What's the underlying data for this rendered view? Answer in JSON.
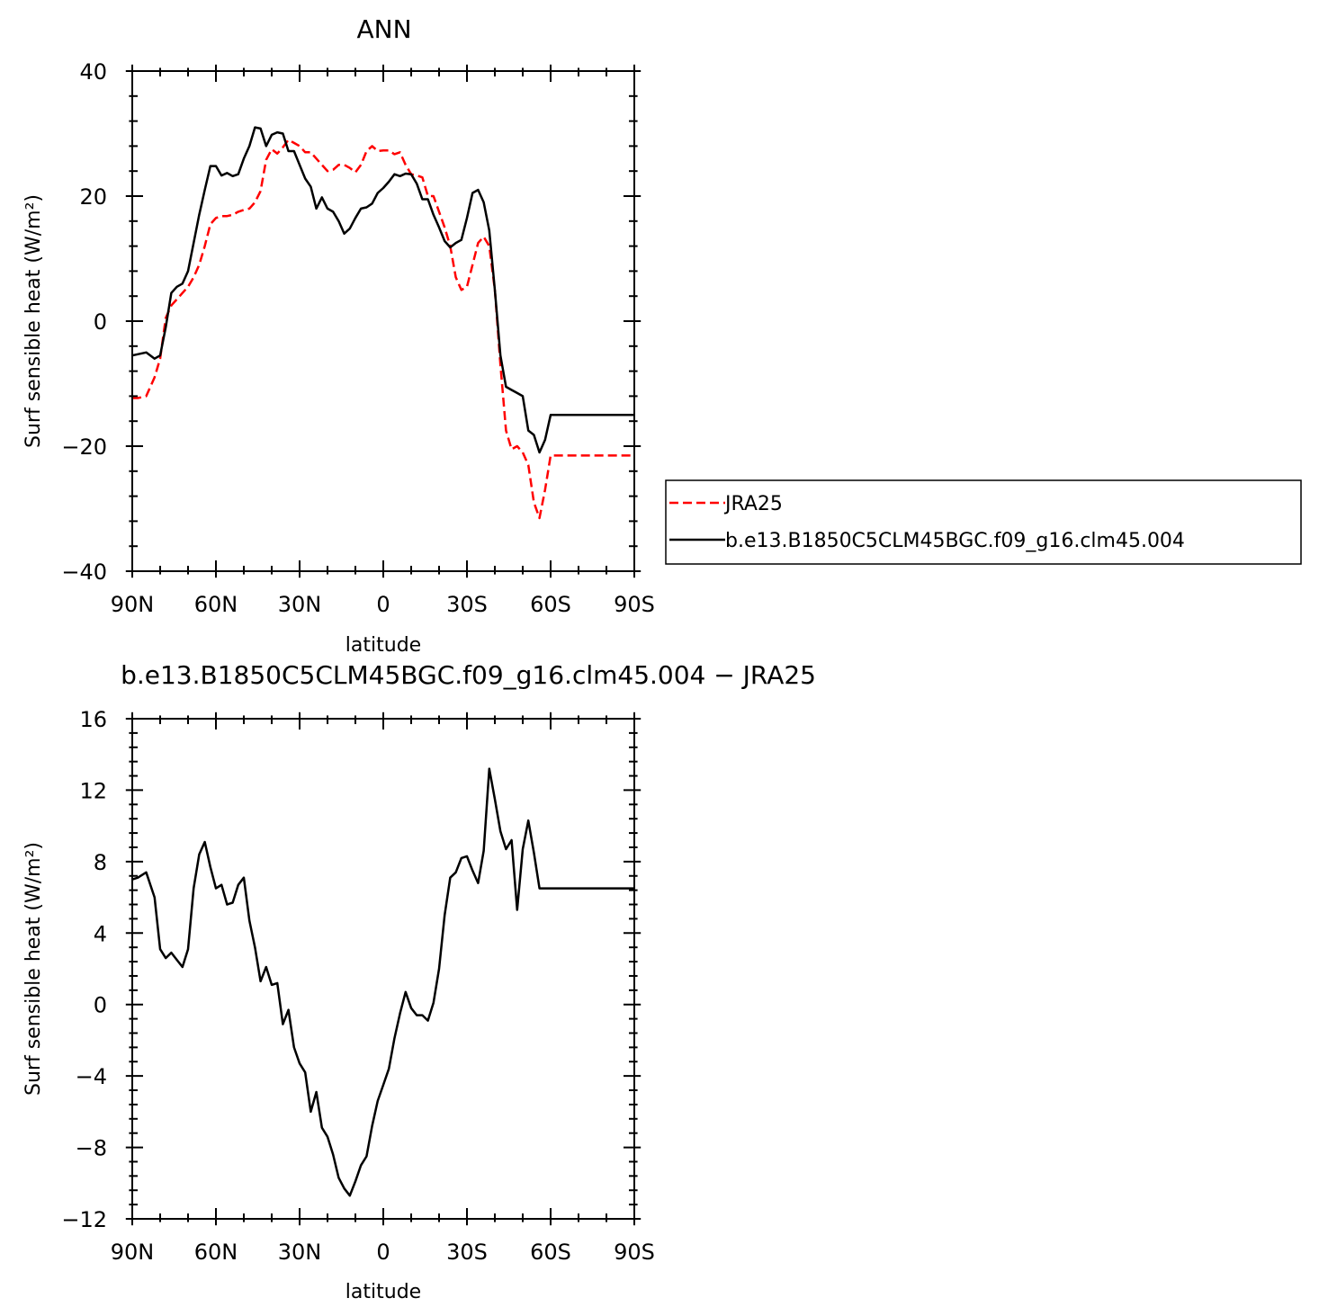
{
  "chart_data": [
    {
      "type": "line",
      "title": "ANN",
      "xlabel": "latitude",
      "ylabel": "Surf sensible heat (W/m²)",
      "xlim": [
        90,
        -90
      ],
      "ylim": [
        -40,
        40
      ],
      "x_ticks": [
        90,
        60,
        30,
        0,
        -30,
        -60,
        -90
      ],
      "x_tick_labels": [
        "90N",
        "60N",
        "30N",
        "0",
        "30S",
        "60S",
        "90S"
      ],
      "y_ticks": [
        -40,
        -20,
        0,
        20,
        40
      ],
      "y_tick_labels": [
        "−40",
        "−20",
        "0",
        "20",
        "40"
      ],
      "grid": false,
      "legend": "right",
      "series": [
        {
          "name": "JRA25",
          "color": "#ff0000",
          "style": "dashed",
          "x": [
            90,
            88,
            85,
            82,
            80,
            78,
            76,
            74,
            72,
            70,
            68,
            66,
            64,
            62,
            60,
            58,
            56,
            54,
            52,
            50,
            48,
            46,
            44,
            42,
            40,
            38,
            36,
            34,
            32,
            30,
            28,
            26,
            24,
            22,
            20,
            18,
            16,
            14,
            12,
            10,
            8,
            6,
            4,
            2,
            0,
            -2,
            -4,
            -6,
            -8,
            -10,
            -12,
            -14,
            -16,
            -18,
            -20,
            -22,
            -24,
            -26,
            -28,
            -30,
            -32,
            -34,
            -36,
            -38,
            -40,
            -42,
            -44,
            -46,
            -48,
            -50,
            -52,
            -54,
            -56,
            -58,
            -60,
            -62,
            -64,
            -66,
            -68,
            -70,
            -72,
            -74,
            -76,
            -78,
            -80,
            -82,
            -84,
            -86,
            -88,
            -90
          ],
          "values": [
            -12.3,
            -12.3,
            -12,
            -9,
            -6,
            0.5,
            2.5,
            3.5,
            4.5,
            5.5,
            7,
            9,
            12,
            15.5,
            16.5,
            16.8,
            16.8,
            17,
            17.5,
            17.8,
            18,
            19,
            20.8,
            25.8,
            27.5,
            26.8,
            27.8,
            29,
            28.5,
            28,
            27,
            27,
            26,
            25,
            24,
            24.2,
            25,
            25,
            24.5,
            23.8,
            25,
            27.2,
            28,
            27.2,
            27.3,
            27.3,
            26.7,
            27,
            25,
            23.5,
            23.3,
            23,
            20,
            20,
            17.5,
            15,
            12,
            7,
            5,
            5.5,
            9,
            12.5,
            13.5,
            12,
            5,
            -7,
            -17.5,
            -20.5,
            -20,
            -21,
            -23,
            -29,
            -31.5,
            -27,
            -21.5,
            -21.5,
            -21.5,
            -21.5,
            -21.5,
            -21.5,
            -21.5,
            -21.5,
            -21.5,
            -21.5,
            -21.5,
            -21.5,
            -21.5,
            -21.5,
            -21.5,
            -21.5
          ]
        },
        {
          "name": "b.e13.B1850C5CLM45BGC.f09_g16.clm45.004",
          "color": "#000000",
          "style": "solid",
          "x": [
            90,
            88,
            85,
            82,
            80,
            78,
            76,
            74,
            72,
            70,
            68,
            66,
            64,
            62,
            60,
            58,
            56,
            54,
            52,
            50,
            48,
            46,
            44,
            42,
            40,
            38,
            36,
            34,
            32,
            30,
            28,
            26,
            24,
            22,
            20,
            18,
            16,
            14,
            12,
            10,
            8,
            6,
            4,
            2,
            0,
            -2,
            -4,
            -6,
            -8,
            -10,
            -12,
            -14,
            -16,
            -18,
            -20,
            -22,
            -24,
            -26,
            -28,
            -30,
            -32,
            -34,
            -36,
            -38,
            -40,
            -42,
            -44,
            -46,
            -48,
            -50,
            -52,
            -54,
            -56,
            -58,
            -60,
            -62,
            -64,
            -66,
            -68,
            -70,
            -72,
            -74,
            -76,
            -78,
            -80,
            -82,
            -84,
            -86,
            -88,
            -90
          ],
          "values": [
            -5.5,
            -5.3,
            -5,
            -6,
            -5.5,
            -1,
            4.5,
            5.5,
            6,
            8,
            12.5,
            17,
            21,
            24.8,
            24.8,
            23.3,
            23.7,
            23.2,
            23.5,
            26,
            28,
            31,
            30.8,
            28,
            29.8,
            30.2,
            30,
            27.2,
            27.2,
            25,
            22.8,
            21.5,
            18,
            19.8,
            18,
            17.5,
            16,
            14,
            14.8,
            16.5,
            18,
            18.2,
            18.8,
            20.5,
            21.3,
            22.3,
            23.5,
            23.2,
            23.6,
            23.5,
            22,
            19.5,
            19.5,
            17,
            15,
            12.8,
            11.8,
            12.5,
            13,
            16.5,
            20.5,
            21,
            19,
            14.5,
            5,
            -5.5,
            -10.5,
            -11,
            -11.5,
            -12,
            -17.5,
            -18.2,
            -21,
            -19,
            -15,
            -15,
            -15,
            -15,
            -15,
            -15,
            -15,
            -15,
            -15,
            -15,
            -15,
            -15,
            -15,
            -15,
            -15,
            -15
          ]
        }
      ]
    },
    {
      "type": "line",
      "title": "b.e13.B1850C5CLM45BGC.f09_g16.clm45.004 − JRA25",
      "xlabel": "latitude",
      "ylabel": "Surf sensible heat (W/m²)",
      "xlim": [
        90,
        -90
      ],
      "ylim": [
        -12,
        16
      ],
      "x_ticks": [
        90,
        60,
        30,
        0,
        -30,
        -60,
        -90
      ],
      "x_tick_labels": [
        "90N",
        "60N",
        "30N",
        "0",
        "30S",
        "60S",
        "90S"
      ],
      "y_ticks": [
        -12,
        -8,
        -4,
        0,
        4,
        8,
        12,
        16
      ],
      "y_tick_labels": [
        "−12",
        "−8",
        "−4",
        "0",
        "4",
        "8",
        "12",
        "16"
      ],
      "grid": false,
      "series": [
        {
          "color": "#000000",
          "style": "solid",
          "x": [
            90,
            88,
            85,
            82,
            80,
            78,
            76,
            74,
            72,
            70,
            68,
            66,
            64,
            62,
            60,
            58,
            56,
            54,
            52,
            50,
            48,
            46,
            44,
            42,
            40,
            38,
            36,
            34,
            32,
            30,
            28,
            26,
            24,
            22,
            20,
            18,
            16,
            14,
            12,
            10,
            8,
            6,
            4,
            2,
            0,
            -2,
            -4,
            -6,
            -8,
            -10,
            -12,
            -14,
            -16,
            -18,
            -20,
            -22,
            -24,
            -26,
            -28,
            -30,
            -32,
            -34,
            -36,
            -38,
            -40,
            -42,
            -44,
            -46,
            -48,
            -50,
            -52,
            -54,
            -56,
            -58,
            -60,
            -62,
            -64,
            -66,
            -68,
            -70,
            -72,
            -74,
            -76,
            -78,
            -80,
            -82,
            -84,
            -86,
            -88,
            -90
          ],
          "values": [
            7,
            7.1,
            7.4,
            6,
            3.1,
            2.6,
            2.9,
            2.5,
            2.1,
            3.1,
            6.5,
            8.4,
            9.1,
            7.7,
            6.5,
            6.7,
            5.6,
            5.7,
            6.7,
            7.1,
            4.7,
            3.2,
            1.3,
            2.1,
            1.1,
            1.2,
            -1.1,
            -0.3,
            -2.4,
            -3.3,
            -3.8,
            -6,
            -4.9,
            -6.9,
            -7.4,
            -8.4,
            -9.7,
            -10.3,
            -10.7,
            -9.9,
            -9,
            -8.5,
            -6.8,
            -5.4,
            -4.5,
            -3.6,
            -1.9,
            -0.5,
            0.7,
            -0.2,
            -0.6,
            -0.6,
            -0.9,
            0.1,
            2,
            5,
            7.1,
            7.4,
            8.2,
            8.3,
            7.5,
            6.8,
            8.6,
            13.2,
            11.5,
            9.7,
            8.7,
            9.2,
            5.3,
            8.7,
            10.3,
            8.5,
            6.5,
            6.5,
            6.5,
            6.5,
            6.5,
            6.5,
            6.5,
            6.5,
            6.5,
            6.5,
            6.5,
            6.5,
            6.5,
            6.5,
            6.5,
            6.5,
            6.5,
            6.5
          ]
        }
      ]
    }
  ]
}
